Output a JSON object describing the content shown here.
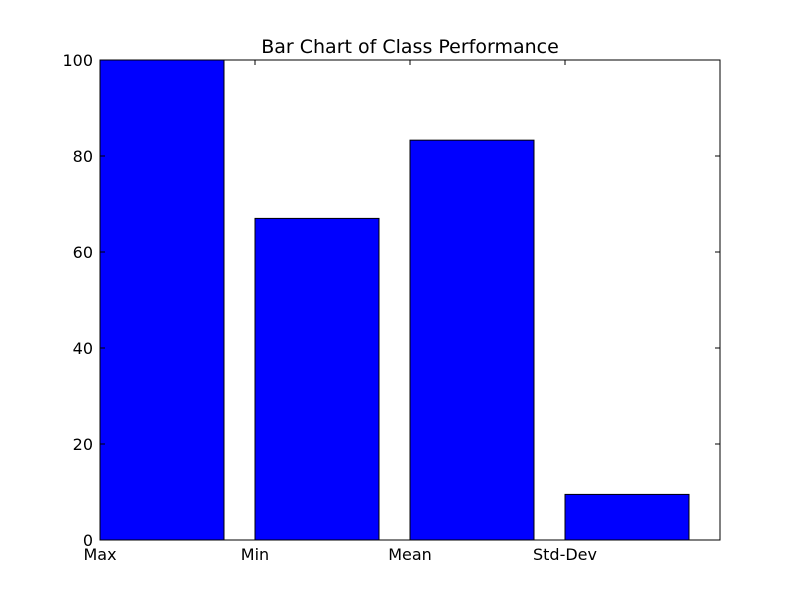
{
  "chart_data": {
    "type": "bar",
    "title": "Bar Chart of Class Performance",
    "xlabel": "",
    "ylabel": "",
    "categories": [
      "Max",
      "Min",
      "Mean",
      "Std-Dev"
    ],
    "values": [
      100,
      67,
      83.3,
      9.5
    ],
    "ylim": [
      0,
      100
    ],
    "xlim": [
      0,
      4
    ],
    "yticks": [
      0,
      20,
      40,
      60,
      80,
      100
    ],
    "grid": false,
    "colors": {
      "bar_fill": "#0000ff",
      "bar_edge": "#000000",
      "axes": "#000000",
      "background": "#ffffff"
    }
  }
}
